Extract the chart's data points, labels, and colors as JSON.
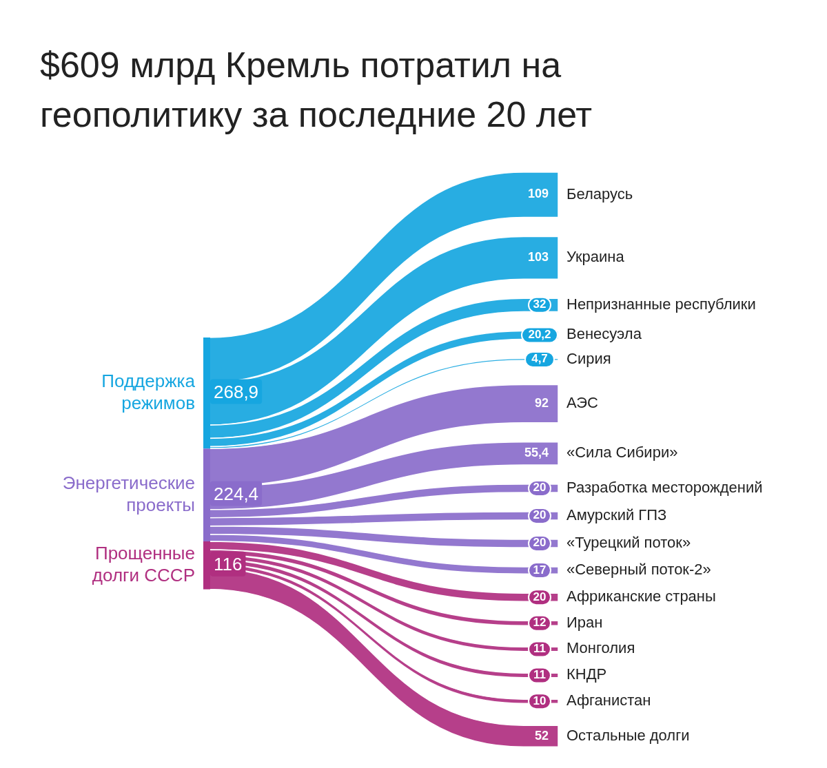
{
  "chart_data": {
    "type": "other",
    "title": "$609 млрд Кремль потратил на геополитику за последние 20 лет",
    "categories": [
      "Беларусь",
      "Украина",
      "Непризнанные республики",
      "Венесуэла",
      "Сирия",
      "АЭС",
      "«Сила Сибири»",
      "Разработка месторождений",
      "Амурский ГПЗ",
      "«Турецкий поток»",
      "«Северный поток-2»",
      "Африканские страны",
      "Иран",
      "Монголия",
      "КНДР",
      "Афганистан",
      "Остальные долги"
    ],
    "series": [
      {
        "name": "Поддержка режимов",
        "color": "#16a6e0",
        "values": [
          109,
          103,
          32,
          20.2,
          4.7,
          null,
          null,
          null,
          null,
          null,
          null,
          null,
          null,
          null,
          null,
          null,
          null
        ],
        "value_labels": [
          "109",
          "103",
          "32",
          "20,2",
          "4,7",
          null,
          null,
          null,
          null,
          null,
          null,
          null,
          null,
          null,
          null,
          null,
          null
        ]
      },
      {
        "name": "Энергетические проекты",
        "color": "#8a6ccb",
        "values": [
          null,
          null,
          null,
          null,
          null,
          92,
          55.4,
          20,
          20,
          20,
          17,
          null,
          null,
          null,
          null,
          null,
          null
        ],
        "value_labels": [
          null,
          null,
          null,
          null,
          null,
          "92",
          "55,4",
          "20",
          "20",
          "20",
          "17",
          null,
          null,
          null,
          null,
          null,
          null
        ]
      },
      {
        "name": "Прощенные долги СССР",
        "color": "#b02f80",
        "values": [
          null,
          null,
          null,
          null,
          null,
          null,
          null,
          null,
          null,
          null,
          null,
          20,
          12,
          11,
          11,
          10,
          52
        ],
        "value_labels": [
          null,
          null,
          null,
          null,
          null,
          null,
          null,
          null,
          null,
          null,
          null,
          "20",
          "12",
          "11",
          "11",
          "10",
          "52"
        ]
      }
    ],
    "totals": [
      "268,9",
      "224,4",
      "116"
    ],
    "legend": "left"
  }
}
